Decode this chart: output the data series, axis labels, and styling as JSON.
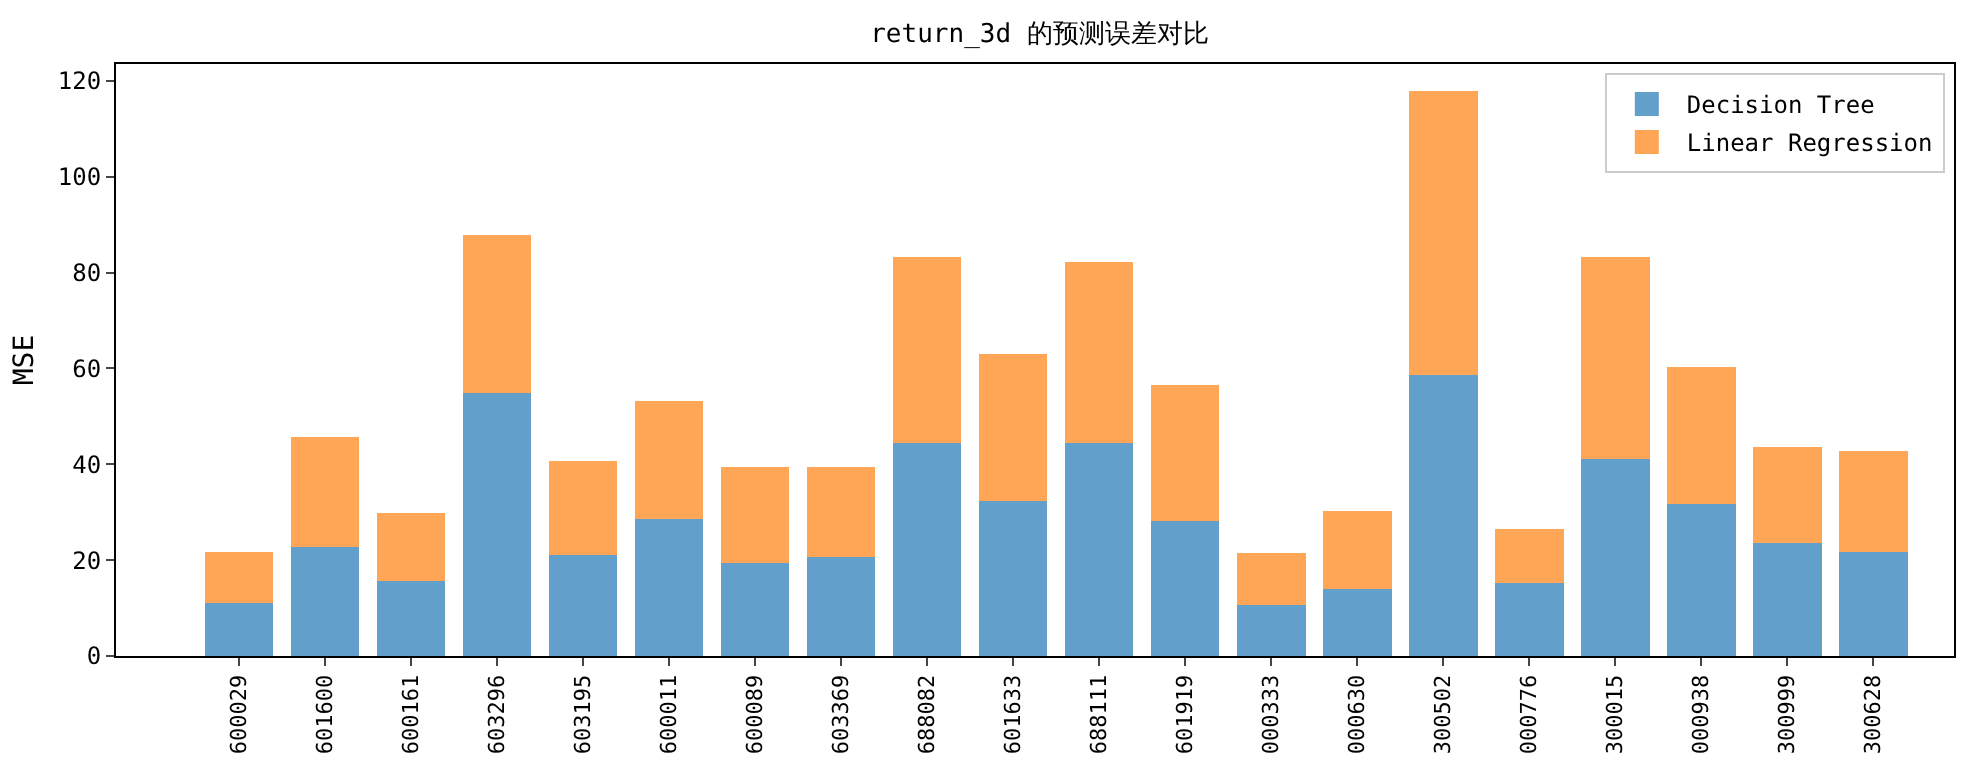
{
  "chart_data": {
    "type": "bar",
    "title": "return_3d 的预测误差对比",
    "ylabel": "MSE",
    "categories": [
      "600029",
      "601600",
      "600161",
      "603296",
      "603195",
      "600011",
      "600089",
      "603369",
      "688082",
      "601633",
      "688111",
      "601919",
      "000333",
      "000630",
      "300502",
      "000776",
      "300015",
      "000938",
      "300999",
      "300628"
    ],
    "stacked": true,
    "series": [
      {
        "name": "Decision Tree",
        "color": "#629fca",
        "values": [
          11.0,
          22.7,
          15.6,
          54.8,
          21.0,
          28.5,
          19.3,
          20.6,
          44.4,
          32.3,
          44.4,
          28.1,
          10.6,
          13.9,
          58.6,
          15.2,
          41.0,
          31.8,
          23.5,
          21.8
        ]
      },
      {
        "name": "Linear Regression",
        "color": "#ffa556",
        "values": [
          10.8,
          22.9,
          14.2,
          33.0,
          19.6,
          24.6,
          20.1,
          18.8,
          38.8,
          30.8,
          37.9,
          28.4,
          10.8,
          16.3,
          59.2,
          11.2,
          42.2,
          28.4,
          20.0,
          20.9
        ]
      }
    ],
    "ylim": [
      0,
      123.5
    ],
    "yticks": [
      0,
      20,
      40,
      60,
      80,
      100,
      120
    ],
    "legend": "top right"
  }
}
